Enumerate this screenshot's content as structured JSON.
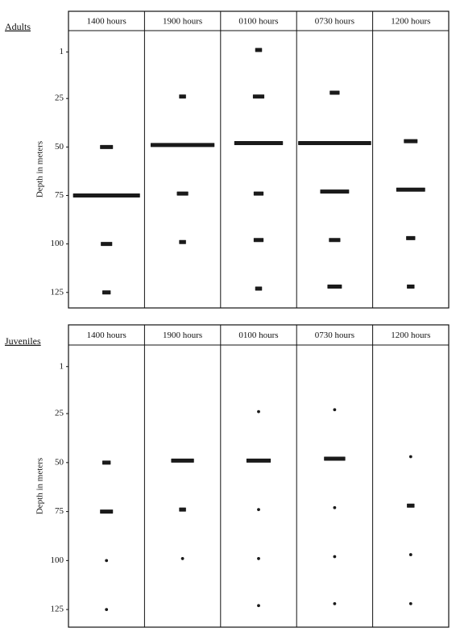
{
  "chart_data": [
    {
      "type": "strip",
      "title": "Adults",
      "ylabel": "Depth in meters",
      "ylim": [
        -10,
        133
      ],
      "yticks": [
        1,
        25,
        50,
        75,
        100,
        125
      ],
      "xlim": [
        0,
        100
      ],
      "color": "#1a1a1a",
      "series": [
        {
          "name": "1400 hours",
          "depths": [
            50,
            75,
            100,
            125
          ],
          "widths": [
            17,
            88,
            15,
            11
          ]
        },
        {
          "name": "1900 hours",
          "depths": [
            24,
            49,
            74,
            99
          ],
          "widths": [
            9,
            84,
            15,
            9
          ]
        },
        {
          "name": "0100 hours",
          "depths": [
            0,
            24,
            48,
            74,
            98,
            123
          ],
          "widths": [
            9,
            15,
            64,
            13,
            13,
            9
          ]
        },
        {
          "name": "0730 hours",
          "depths": [
            22,
            48,
            73,
            98,
            122
          ],
          "widths": [
            13,
            96,
            38,
            15,
            19
          ]
        },
        {
          "name": "1200 hours",
          "depths": [
            47,
            72,
            97,
            122
          ],
          "widths": [
            18,
            38,
            12,
            10
          ]
        }
      ]
    },
    {
      "type": "strip",
      "title": "Juveniles",
      "ylabel": "Depth in meters",
      "ylim": [
        -10,
        134
      ],
      "yticks": [
        1,
        25,
        50,
        75,
        100,
        125
      ],
      "xlim": [
        0,
        100
      ],
      "color": "#1a1a1a",
      "series": [
        {
          "name": "1400 hours",
          "depths": [
            50,
            75,
            100,
            125
          ],
          "widths": [
            11,
            17,
            4,
            4
          ]
        },
        {
          "name": "1900 hours",
          "depths": [
            49,
            74,
            99
          ],
          "widths": [
            30,
            9,
            4
          ]
        },
        {
          "name": "0100 hours",
          "depths": [
            24,
            49,
            74,
            99,
            123
          ],
          "widths": [
            4,
            32,
            4,
            4,
            4
          ]
        },
        {
          "name": "0730 hours",
          "depths": [
            23,
            48,
            73,
            98,
            122
          ],
          "widths": [
            4,
            28,
            4,
            4,
            4
          ]
        },
        {
          "name": "1200 hours",
          "depths": [
            47,
            72,
            97,
            122
          ],
          "widths": [
            4,
            10,
            4,
            4
          ]
        }
      ]
    }
  ]
}
